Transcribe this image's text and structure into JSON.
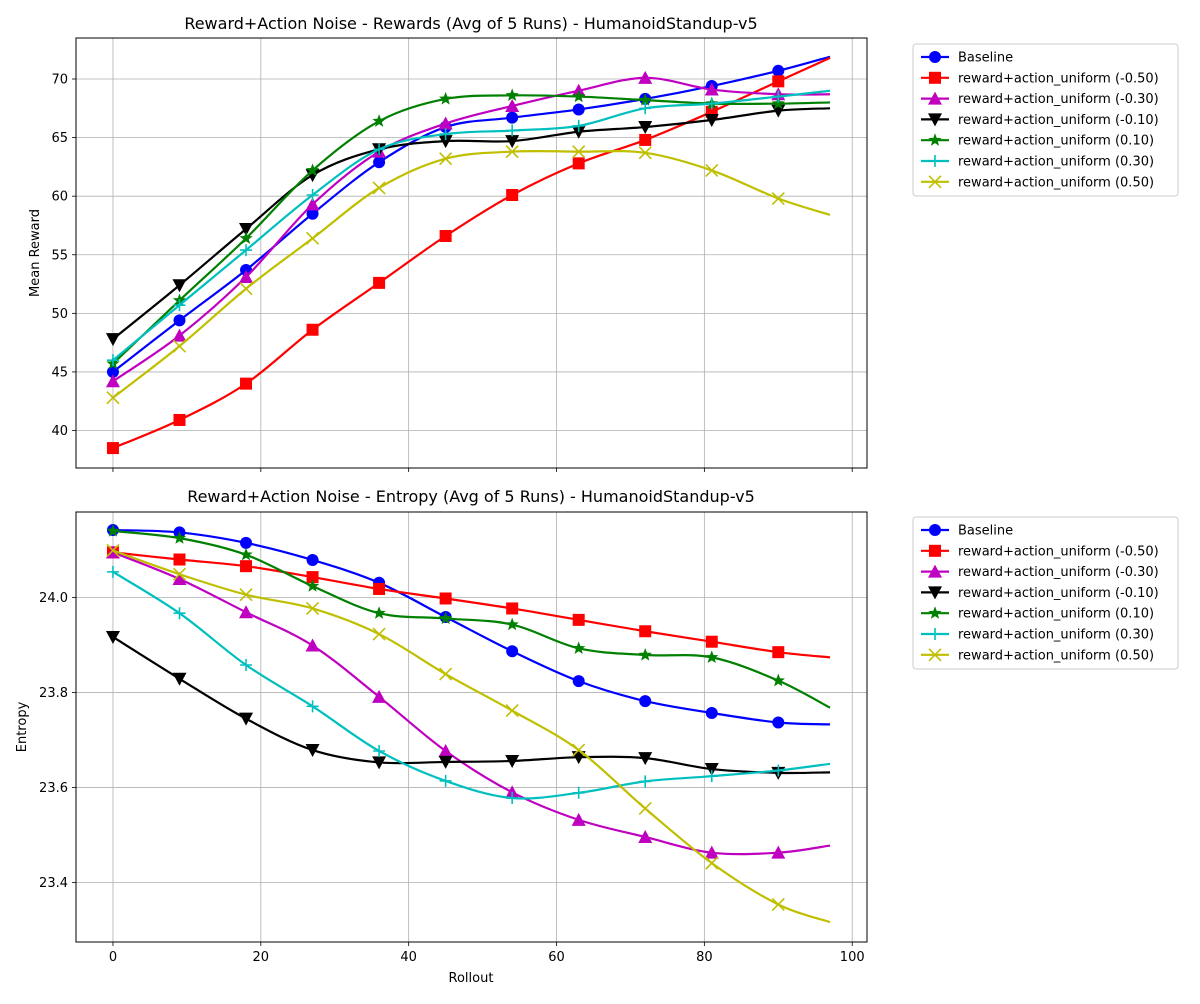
{
  "chart_data": [
    {
      "type": "line",
      "title": "Reward+Action Noise - Rewards (Avg of 5 Runs) - HumanoidStandup-v5",
      "xlabel": "",
      "ylabel": "Mean Reward",
      "xlim": [
        -5,
        102
      ],
      "ylim": [
        36.8,
        73.5
      ],
      "xticks": [
        0,
        20,
        40,
        60,
        80,
        100
      ],
      "yticks": [
        40,
        45,
        50,
        55,
        60,
        65,
        70
      ],
      "xticklabels_visible": false,
      "grid": true,
      "legend_position": "outside-top-right",
      "markers_every": 9,
      "series": [
        {
          "name": "Baseline",
          "color": "#0000ff",
          "marker": "circle",
          "x": [
            0,
            9,
            18,
            27,
            36,
            45,
            54,
            63,
            72,
            81,
            90,
            97
          ],
          "y": [
            45.0,
            49.4,
            53.7,
            58.5,
            62.9,
            65.9,
            66.7,
            67.4,
            68.3,
            69.4,
            70.7,
            71.9
          ]
        },
        {
          "name": "reward+action_uniform (-0.50)",
          "color": "#ff0000",
          "marker": "square",
          "x": [
            0,
            9,
            18,
            27,
            36,
            45,
            54,
            63,
            72,
            81,
            90,
            97
          ],
          "y": [
            38.5,
            40.9,
            44.0,
            48.6,
            52.6,
            56.6,
            60.1,
            62.8,
            64.8,
            67.2,
            69.8,
            71.8
          ]
        },
        {
          "name": "reward+action_uniform (-0.30)",
          "color": "#c000c0",
          "marker": "triangle-up",
          "x": [
            0,
            9,
            18,
            27,
            36,
            45,
            54,
            63,
            72,
            81,
            90,
            97
          ],
          "y": [
            44.2,
            48.1,
            53.1,
            59.3,
            63.8,
            66.2,
            67.7,
            69.0,
            70.1,
            69.1,
            68.7,
            68.7
          ]
        },
        {
          "name": "reward+action_uniform (-0.10)",
          "color": "#000000",
          "marker": "triangle-down",
          "x": [
            0,
            9,
            18,
            27,
            36,
            45,
            54,
            63,
            72,
            81,
            90,
            97
          ],
          "y": [
            47.8,
            52.4,
            57.2,
            61.8,
            64.0,
            64.7,
            64.7,
            65.5,
            65.9,
            66.5,
            67.3,
            67.5
          ]
        },
        {
          "name": "reward+action_uniform (0.10)",
          "color": "#008000",
          "marker": "star",
          "x": [
            0,
            9,
            18,
            27,
            36,
            45,
            54,
            63,
            72,
            81,
            90,
            97
          ],
          "y": [
            45.7,
            51.1,
            56.4,
            62.2,
            66.4,
            68.3,
            68.6,
            68.5,
            68.2,
            67.9,
            67.9,
            68.0
          ]
        },
        {
          "name": "reward+action_uniform (0.30)",
          "color": "#00bfbf",
          "marker": "plus",
          "x": [
            0,
            9,
            18,
            27,
            36,
            45,
            54,
            63,
            72,
            81,
            90,
            97
          ],
          "y": [
            46.0,
            50.7,
            55.4,
            60.1,
            64.0,
            65.3,
            65.6,
            66.0,
            67.5,
            67.9,
            68.5,
            69.0
          ]
        },
        {
          "name": "reward+action_uniform (0.50)",
          "color": "#bfbf00",
          "marker": "x",
          "x": [
            0,
            9,
            18,
            27,
            36,
            45,
            54,
            63,
            72,
            81,
            90,
            97
          ],
          "y": [
            42.8,
            47.2,
            52.1,
            56.4,
            60.7,
            63.2,
            63.8,
            63.8,
            63.7,
            62.2,
            59.8,
            58.4
          ]
        }
      ]
    },
    {
      "type": "line",
      "title": "Reward+Action Noise - Entropy (Avg of 5 Runs) - HumanoidStandup-v5",
      "xlabel": "Rollout",
      "ylabel": "Entropy",
      "xlim": [
        -5,
        102
      ],
      "ylim": [
        23.275,
        24.18
      ],
      "xticks": [
        0,
        20,
        40,
        60,
        80,
        100
      ],
      "yticks": [
        23.4,
        23.6,
        23.8,
        24.0
      ],
      "grid": true,
      "legend_position": "outside-top-right",
      "markers_every": 9,
      "series": [
        {
          "name": "Baseline",
          "color": "#0000ff",
          "marker": "circle",
          "x": [
            0,
            9,
            18,
            27,
            36,
            45,
            54,
            63,
            72,
            81,
            90,
            97
          ],
          "y": [
            24.142,
            24.137,
            24.115,
            24.079,
            24.031,
            23.959,
            23.887,
            23.824,
            23.782,
            23.757,
            23.737,
            23.733
          ]
        },
        {
          "name": "reward+action_uniform (-0.50)",
          "color": "#ff0000",
          "marker": "square",
          "x": [
            0,
            9,
            18,
            27,
            36,
            45,
            54,
            63,
            72,
            81,
            90,
            97
          ],
          "y": [
            24.095,
            24.08,
            24.066,
            24.043,
            24.018,
            23.998,
            23.977,
            23.953,
            23.929,
            23.907,
            23.885,
            23.874
          ]
        },
        {
          "name": "reward+action_uniform (-0.30)",
          "color": "#c000c0",
          "marker": "triangle-up",
          "x": [
            0,
            9,
            18,
            27,
            36,
            45,
            54,
            63,
            72,
            81,
            90,
            97
          ],
          "y": [
            24.095,
            24.039,
            23.969,
            23.899,
            23.791,
            23.677,
            23.59,
            23.532,
            23.496,
            23.463,
            23.463,
            23.478
          ]
        },
        {
          "name": "reward+action_uniform (-0.10)",
          "color": "#000000",
          "marker": "triangle-down",
          "x": [
            0,
            9,
            18,
            27,
            36,
            45,
            54,
            63,
            72,
            81,
            90,
            97
          ],
          "y": [
            23.917,
            23.829,
            23.745,
            23.679,
            23.653,
            23.654,
            23.656,
            23.664,
            23.662,
            23.639,
            23.631,
            23.632
          ]
        },
        {
          "name": "reward+action_uniform (0.10)",
          "color": "#008000",
          "marker": "star",
          "x": [
            0,
            9,
            18,
            27,
            36,
            45,
            54,
            63,
            72,
            81,
            90,
            97
          ],
          "y": [
            24.14,
            24.125,
            24.09,
            24.024,
            23.967,
            23.956,
            23.943,
            23.893,
            23.879,
            23.874,
            23.825,
            23.768
          ]
        },
        {
          "name": "reward+action_uniform (0.30)",
          "color": "#00bfbf",
          "marker": "plus",
          "x": [
            0,
            9,
            18,
            27,
            36,
            45,
            54,
            63,
            72,
            81,
            90,
            97
          ],
          "y": [
            24.054,
            23.967,
            23.858,
            23.771,
            23.677,
            23.614,
            23.578,
            23.589,
            23.613,
            23.624,
            23.636,
            23.65
          ]
        },
        {
          "name": "reward+action_uniform (0.50)",
          "color": "#bfbf00",
          "marker": "x",
          "x": [
            0,
            9,
            18,
            27,
            36,
            45,
            54,
            63,
            72,
            81,
            90,
            97
          ],
          "y": [
            24.099,
            24.049,
            24.006,
            23.977,
            23.923,
            23.839,
            23.762,
            23.679,
            23.556,
            23.441,
            23.354,
            23.317
          ]
        }
      ]
    }
  ]
}
